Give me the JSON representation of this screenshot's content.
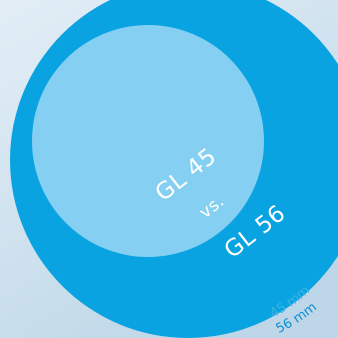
{
  "labels": {
    "small_product": "GL 45",
    "versus": "vs.",
    "large_product": "GL 56",
    "small_size": "45 mm",
    "large_size": "56 mm"
  },
  "colors": {
    "background_light": "#e3eef6",
    "background_dark": "#bed7e8",
    "large_circle": "#0aa3e2",
    "small_circle": "#85d0f2",
    "small_size_text": "#3ab3e6",
    "large_size_text": "#0a8fd6",
    "label_text": "#ffffff"
  }
}
